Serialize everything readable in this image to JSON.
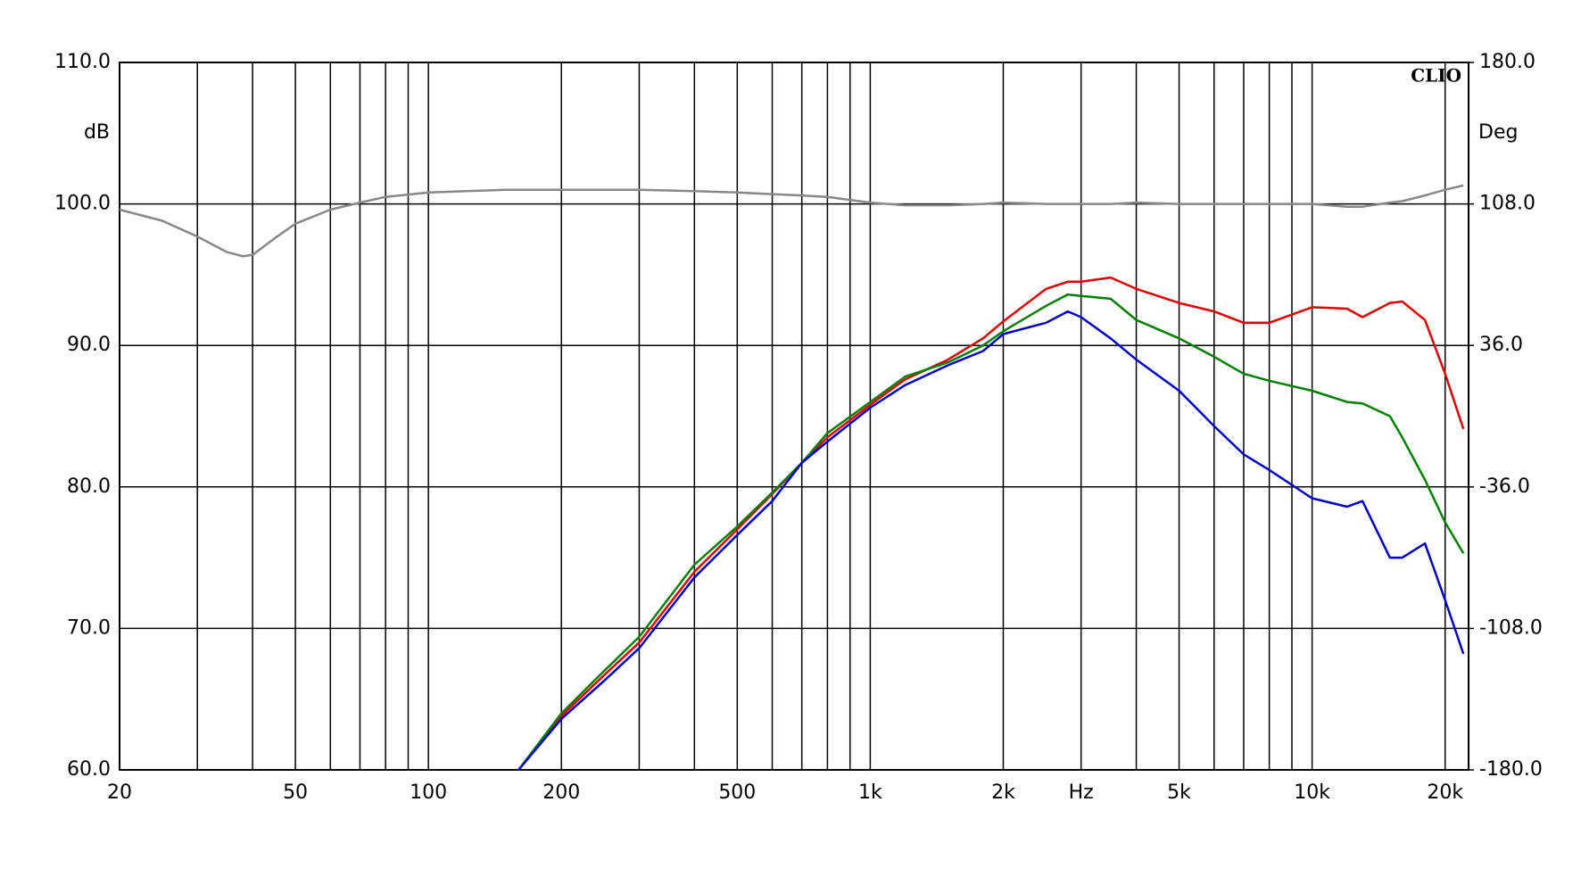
{
  "chart_data": {
    "type": "line",
    "watermark": "CLIO",
    "ylabel": "dB",
    "y2label": "Deg",
    "xscale": "log",
    "grid": true,
    "xlim": [
      20,
      22600
    ],
    "ylim": [
      60,
      110
    ],
    "y2lim": [
      -180,
      180
    ],
    "xticks": [
      20,
      50,
      100,
      200,
      500,
      {
        "value": 1000,
        "label": "1k"
      },
      {
        "value": 2000,
        "label": "2k"
      },
      {
        "value": 3000,
        "label": "Hz"
      },
      {
        "value": 5000,
        "label": "5k"
      },
      {
        "value": 10000,
        "label": "10k"
      },
      {
        "value": 20000,
        "label": "20k"
      }
    ],
    "xgrid_minor": [
      30,
      40,
      60,
      70,
      80,
      90,
      300,
      400,
      600,
      700,
      800,
      900,
      4000,
      6000,
      7000,
      8000,
      9000
    ],
    "yticks": [
      {
        "value": 60,
        "label": "60.0"
      },
      {
        "value": 70,
        "label": "70.0"
      },
      {
        "value": 80,
        "label": "80.0"
      },
      {
        "value": 90,
        "label": "90.0"
      },
      {
        "value": 100,
        "label": "100.0"
      },
      {
        "value": 110,
        "label": "110.0"
      }
    ],
    "y2ticks": [
      {
        "value": -180,
        "label": "-180.0"
      },
      {
        "value": -108,
        "label": "-108.0"
      },
      {
        "value": -36,
        "label": "-36.0"
      },
      {
        "value": 36,
        "label": "36.0"
      },
      {
        "value": 108,
        "label": "108.0"
      },
      {
        "value": 180,
        "label": "180.0"
      }
    ],
    "x": [
      20,
      25,
      30,
      35,
      38,
      40,
      45,
      50,
      60,
      70,
      80,
      100,
      150,
      160,
      200,
      250,
      300,
      400,
      500,
      600,
      700,
      800,
      1000,
      1200,
      1500,
      1800,
      2000,
      2500,
      2800,
      3000,
      3500,
      4000,
      5000,
      6000,
      7000,
      8000,
      10000,
      12000,
      13000,
      15000,
      16000,
      18000,
      20000,
      22000
    ],
    "series": [
      {
        "color": "#888888",
        "axis": "y2",
        "values": [
          105.1,
          99.4,
          91.4,
          83.5,
          81.4,
          82.1,
          90.7,
          97.9,
          105.1,
          108.7,
          111.6,
          113.8,
          115.2,
          115.2,
          115.2,
          115.2,
          115.2,
          114.5,
          113.8,
          113.0,
          112.3,
          111.6,
          108.7,
          107.3,
          107.3,
          108.0,
          108.7,
          108.0,
          108.0,
          108.0,
          108.0,
          108.7,
          108.0,
          108.0,
          108.0,
          108.0,
          108.0,
          106.6,
          106.6,
          108.7,
          109.4,
          112.3,
          115.2,
          117.4
        ]
      },
      {
        "color": "#e00000",
        "values": [
          null,
          null,
          null,
          null,
          null,
          null,
          null,
          null,
          null,
          null,
          null,
          null,
          null,
          60,
          63.8,
          66.7,
          69.0,
          74.0,
          77.0,
          79.5,
          81.7,
          83.5,
          85.8,
          87.6,
          89.0,
          90.5,
          91.7,
          94.0,
          94.5,
          94.5,
          94.8,
          94.0,
          93.0,
          92.4,
          91.6,
          91.6,
          92.7,
          92.6,
          92.0,
          93.0,
          93.1,
          91.8,
          88.0,
          84.1
        ]
      },
      {
        "color": "#008000",
        "values": [
          null,
          null,
          null,
          null,
          null,
          null,
          null,
          null,
          null,
          null,
          null,
          null,
          null,
          60,
          64,
          67,
          69.4,
          74.5,
          77.2,
          79.6,
          81.7,
          83.8,
          86,
          87.8,
          88.8,
          90.0,
          91.0,
          92.8,
          93.6,
          93.5,
          93.3,
          91.8,
          90.5,
          89.2,
          88.0,
          87.5,
          86.8,
          86.0,
          85.9,
          85.0,
          83.5,
          80.5,
          77.5,
          75.3
        ]
      },
      {
        "color": "#0000c8",
        "values": [
          null,
          null,
          null,
          null,
          null,
          null,
          null,
          null,
          null,
          null,
          null,
          null,
          null,
          60,
          63.6,
          66.3,
          68.6,
          73.6,
          76.6,
          79.0,
          81.7,
          83.2,
          85.6,
          87.2,
          88.6,
          89.6,
          90.8,
          91.6,
          92.4,
          92.0,
          90.5,
          89.0,
          86.8,
          84.3,
          82.3,
          81.2,
          79.2,
          78.6,
          79.0,
          75.0,
          75.0,
          76.0,
          72.0,
          68.2
        ]
      }
    ]
  }
}
